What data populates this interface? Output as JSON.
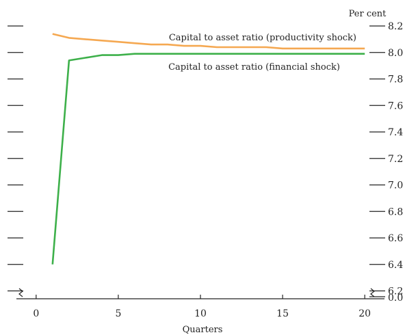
{
  "chart_data": {
    "type": "line",
    "y_unit_label": "Per cent",
    "xlabel": "Quarters",
    "x_ticks": [
      "0",
      "5",
      "10",
      "15",
      "20"
    ],
    "y_ticks": [
      "8.2",
      "8.0",
      "7.8",
      "7.6",
      "7.4",
      "7.2",
      "7.0",
      "6.8",
      "6.6",
      "6.4",
      "6.2",
      "0.0"
    ],
    "xlim": [
      -1.2,
      21.2
    ],
    "ylim": [
      6.2,
      8.2
    ],
    "y_axis_break": true,
    "grid": false,
    "series": [
      {
        "name": "Capital to asset ratio (productivity shock)",
        "color": "#f5a851",
        "x": [
          1,
          2,
          3,
          4,
          5,
          6,
          7,
          8,
          9,
          10,
          11,
          12,
          13,
          14,
          15,
          16,
          17,
          18,
          19,
          20
        ],
        "values": [
          8.14,
          8.11,
          8.1,
          8.09,
          8.08,
          8.07,
          8.06,
          8.06,
          8.05,
          8.05,
          8.04,
          8.04,
          8.04,
          8.04,
          8.03,
          8.03,
          8.03,
          8.03,
          8.03,
          8.03
        ]
      },
      {
        "name": "Capital to asset ratio (financial shock)",
        "color": "#3db04a",
        "x": [
          1,
          2,
          3,
          4,
          5,
          6,
          7,
          8,
          9,
          10,
          11,
          12,
          13,
          14,
          15,
          16,
          17,
          18,
          19,
          20
        ],
        "values": [
          6.4,
          7.94,
          7.96,
          7.98,
          7.98,
          7.99,
          7.99,
          7.99,
          7.99,
          7.99,
          7.99,
          7.99,
          7.99,
          7.99,
          7.99,
          7.99,
          7.99,
          7.99,
          7.99,
          7.99
        ]
      }
    ]
  }
}
